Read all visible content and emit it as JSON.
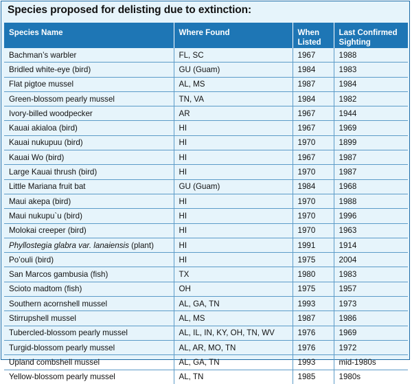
{
  "title": "Species proposed for delisting due to extinction:",
  "columns": {
    "species": "Species Name",
    "where": "Where Found",
    "listed": "When Listed",
    "sighting": "Last Confirmed Sighting"
  },
  "rows": [
    {
      "species": "Bachman’s warbler",
      "where": "FL, SC",
      "listed": "1967",
      "sighting": "1988"
    },
    {
      "species": "Bridled white-eye (bird)",
      "where": "GU (Guam)",
      "listed": "1984",
      "sighting": "1983"
    },
    {
      "species": "Flat pigtoe mussel",
      "where": "AL, MS",
      "listed": "1987",
      "sighting": "1984"
    },
    {
      "species": "Green-blossom pearly mussel",
      "where": "TN, VA",
      "listed": "1984",
      "sighting": "1982"
    },
    {
      "species": "Ivory-billed woodpecker",
      "where": "AR",
      "listed": "1967",
      "sighting": "1944"
    },
    {
      "species": "Kauai akialoa (bird)",
      "where": "HI",
      "listed": "1967",
      "sighting": "1969"
    },
    {
      "species": "Kauai nukupuu (bird)",
      "where": "HI",
      "listed": "1970",
      "sighting": "1899"
    },
    {
      "species": "Kauai Wo (bird)",
      "where": "HI",
      "listed": "1967",
      "sighting": "1987"
    },
    {
      "species": "Large Kauai thrush (bird)",
      "where": "HI",
      "listed": "1970",
      "sighting": "1987"
    },
    {
      "species": "Little Mariana fruit bat",
      "where": "GU (Guam)",
      "listed": "1984",
      "sighting": "1968"
    },
    {
      "species": "Maui akepa (bird)",
      "where": "HI",
      "listed": "1970",
      "sighting": "1988"
    },
    {
      "species": "Maui nukupu`u (bird)",
      "where": "HI",
      "listed": "1970",
      "sighting": "1996"
    },
    {
      "species": "Molokai creeper (bird)",
      "where": "HI",
      "listed": "1970",
      "sighting": "1963"
    },
    {
      "species_italic": "Phyllostegia glabra var. lanaiensis",
      "species_suffix": " (plant)",
      "where": "HI",
      "listed": "1991",
      "sighting": "1914"
    },
    {
      "species": "Po’ouli (bird)",
      "where": "HI",
      "listed": "1975",
      "sighting": "2004"
    },
    {
      "species": "San Marcos gambusia (fish)",
      "where": "TX",
      "listed": "1980",
      "sighting": "1983"
    },
    {
      "species": "Scioto madtom (fish)",
      "where": "OH",
      "listed": "1975",
      "sighting": "1957"
    },
    {
      "species": "Southern acornshell mussel",
      "where": "AL, GA, TN",
      "listed": "1993",
      "sighting": "1973"
    },
    {
      "species": "Stirrupshell mussel",
      "where": "AL, MS",
      "listed": "1987",
      "sighting": "1986"
    },
    {
      "species": "Tubercled-blossom pearly mussel",
      "where": "AL, IL, IN, KY, OH, TN, WV",
      "listed": "1976",
      "sighting": "1969"
    },
    {
      "species": "Turgid-blossom pearly mussel",
      "where": "AL, AR, MO, TN",
      "listed": "1976",
      "sighting": "1972"
    },
    {
      "species": "Upland combshell mussel",
      "where": "AL, GA, TN",
      "listed": "1993",
      "sighting": "mid-1980s"
    },
    {
      "species": "Yellow-blossom pearly mussel",
      "where": "AL, TN",
      "listed": "1985",
      "sighting": "1980s"
    }
  ]
}
